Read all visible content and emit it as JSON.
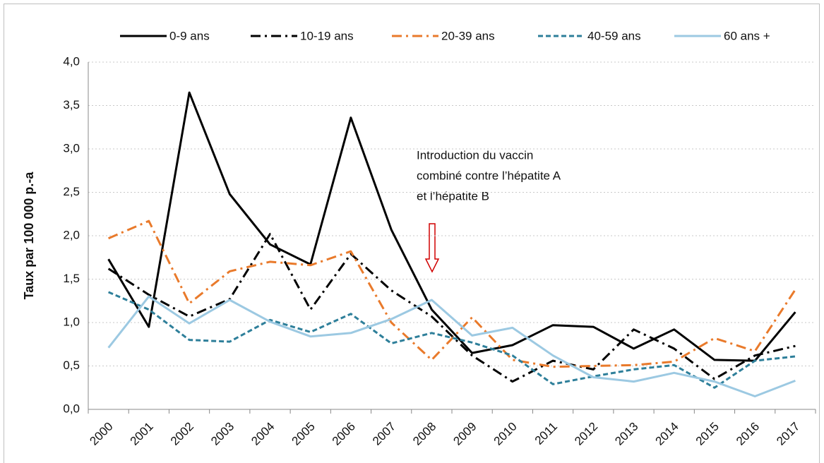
{
  "chart_data": {
    "type": "line",
    "ylabel": "Taux par 100 000 p.-a",
    "annotation": [
      "Introduction du vaccin",
      "combiné contre l’hépatite A",
      "et l’hépatite B"
    ],
    "categories": [
      "2000",
      "2001",
      "2002",
      "2003",
      "2004",
      "2005",
      "2006",
      "2007",
      "2008",
      "2009",
      "2010",
      "2011",
      "2012",
      "2013",
      "2014",
      "2015",
      "2016",
      "2017"
    ],
    "ylim": [
      0,
      4
    ],
    "yticks": [
      {
        "value": 0,
        "label": "0,0"
      },
      {
        "value": 0.5,
        "label": "0,5"
      },
      {
        "value": 1,
        "label": "1,0"
      },
      {
        "value": 1.5,
        "label": "1,5"
      },
      {
        "value": 2,
        "label": "2,0"
      },
      {
        "value": 2.5,
        "label": "2,5"
      },
      {
        "value": 3,
        "label": "3,0"
      },
      {
        "value": 3.5,
        "label": "3,5"
      },
      {
        "value": 4,
        "label": "4,0"
      }
    ],
    "grid": true,
    "legend": "top",
    "series": [
      {
        "name": "0-9 ans",
        "color": "#000000",
        "style": "solid",
        "values": [
          1.73,
          0.95,
          3.65,
          2.48,
          1.9,
          1.67,
          3.36,
          2.07,
          1.15,
          0.65,
          0.74,
          0.97,
          0.95,
          0.7,
          0.92,
          0.57,
          0.56,
          1.12
        ]
      },
      {
        "name": "10-19 ans",
        "color": "#000000",
        "style": "dashdot",
        "values": [
          1.62,
          1.32,
          1.07,
          1.27,
          2.02,
          1.15,
          1.79,
          1.37,
          1.07,
          0.62,
          0.32,
          0.56,
          0.46,
          0.92,
          0.7,
          0.35,
          0.62,
          0.73
        ]
      },
      {
        "name": "20-39 ans",
        "color": "#e97a2b",
        "style": "dashdot",
        "values": [
          1.97,
          2.17,
          1.22,
          1.59,
          1.7,
          1.66,
          1.82,
          1.0,
          0.57,
          1.06,
          0.57,
          0.49,
          0.5,
          0.51,
          0.55,
          0.82,
          0.67,
          1.38
        ]
      },
      {
        "name": "40-59 ans",
        "color": "#2e7f9a",
        "style": "dashed",
        "values": [
          1.35,
          1.15,
          0.8,
          0.78,
          1.03,
          0.89,
          1.1,
          0.76,
          0.88,
          0.77,
          0.62,
          0.29,
          0.38,
          0.46,
          0.51,
          0.25,
          0.56,
          0.61
        ]
      },
      {
        "name": "60 ans +",
        "color": "#9cc9e2",
        "style": "solid",
        "values": [
          0.71,
          1.3,
          0.99,
          1.26,
          1.01,
          0.84,
          0.88,
          1.04,
          1.26,
          0.85,
          0.94,
          0.62,
          0.37,
          0.32,
          0.42,
          0.32,
          0.15,
          0.33
        ]
      }
    ]
  }
}
